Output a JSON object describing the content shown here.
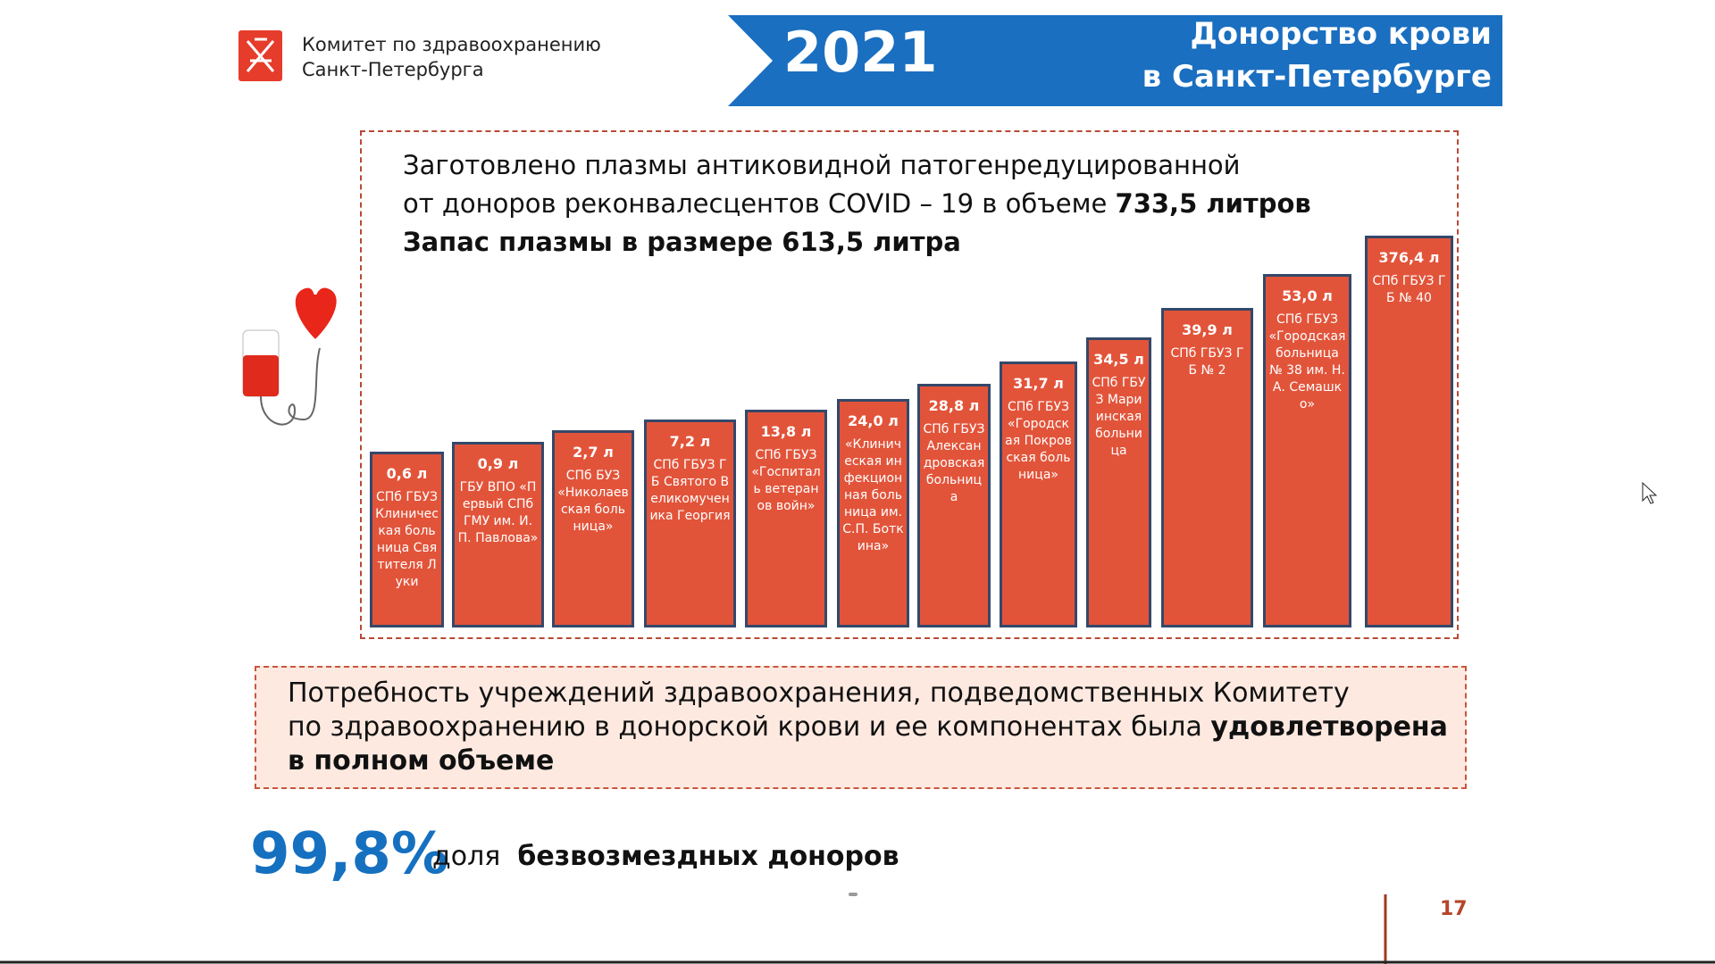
{
  "header": {
    "org": [
      "Комитет по здравоохранению",
      "Санкт-Петербурга"
    ],
    "year": "2021",
    "title": [
      "Донорство крови",
      "в Санкт-Петербурге"
    ]
  },
  "plasma": {
    "line1": "Заготовлено плазмы антиковидной патогенредуцированной",
    "line2": "от доноров реконвалесцентов COVID – 19 в объеме",
    "line2_bold": "733,5 литров",
    "line3": "Запас плазмы в размере 613,5 литра"
  },
  "bars": [
    {
      "value": "0,6 л",
      "label": "СПб ГБУЗ Клиническая больница Святителя Луки"
    },
    {
      "value": "0,9 л",
      "label": "ГБУ ВПО «Первый СПб ГМУ им. И.П. Павлова»"
    },
    {
      "value": "2,7 л",
      "label": "СПб БУЗ «Николаевская больница»"
    },
    {
      "value": "7,2 л",
      "label": "СПб ГБУЗ ГБ Святого Великомученика Георгия"
    },
    {
      "value": "13,8 л",
      "label": "СПб ГБУЗ «Госпиталь ветеранов войн»"
    },
    {
      "value": "24,0 л",
      "label": "«Клиническая инфекционная больница им. С.П. Боткина»"
    },
    {
      "value": "28,8 л",
      "label": "СПб ГБУЗ Александровская больница"
    },
    {
      "value": "31,7 л",
      "label": "СПб ГБУЗ «Городская Покровская больница»"
    },
    {
      "value": "34,5 л",
      "label": "СПб ГБУЗ Мариинская больница"
    },
    {
      "value": "39,9 л",
      "label": "СПб ГБУЗ ГБ № 2"
    },
    {
      "value": "53,0 л",
      "label": "СПб ГБУЗ «Городская больница № 38 им. Н.А. Семашко»"
    },
    {
      "value": "376,4 л",
      "label": "СПб ГБУЗ ГБ № 40"
    }
  ],
  "note": {
    "line1": "Потребность учреждений здравоохранения, подведомственных Комитету",
    "line2": "по здравоохранению в донорской крови и ее компонентах была",
    "line2_bold": "удовлетворена",
    "line3": "в полном объеме"
  },
  "stat": {
    "value": "99,8%",
    "text": "доля",
    "bold": "безвозмездных доноров"
  },
  "page": "17"
}
